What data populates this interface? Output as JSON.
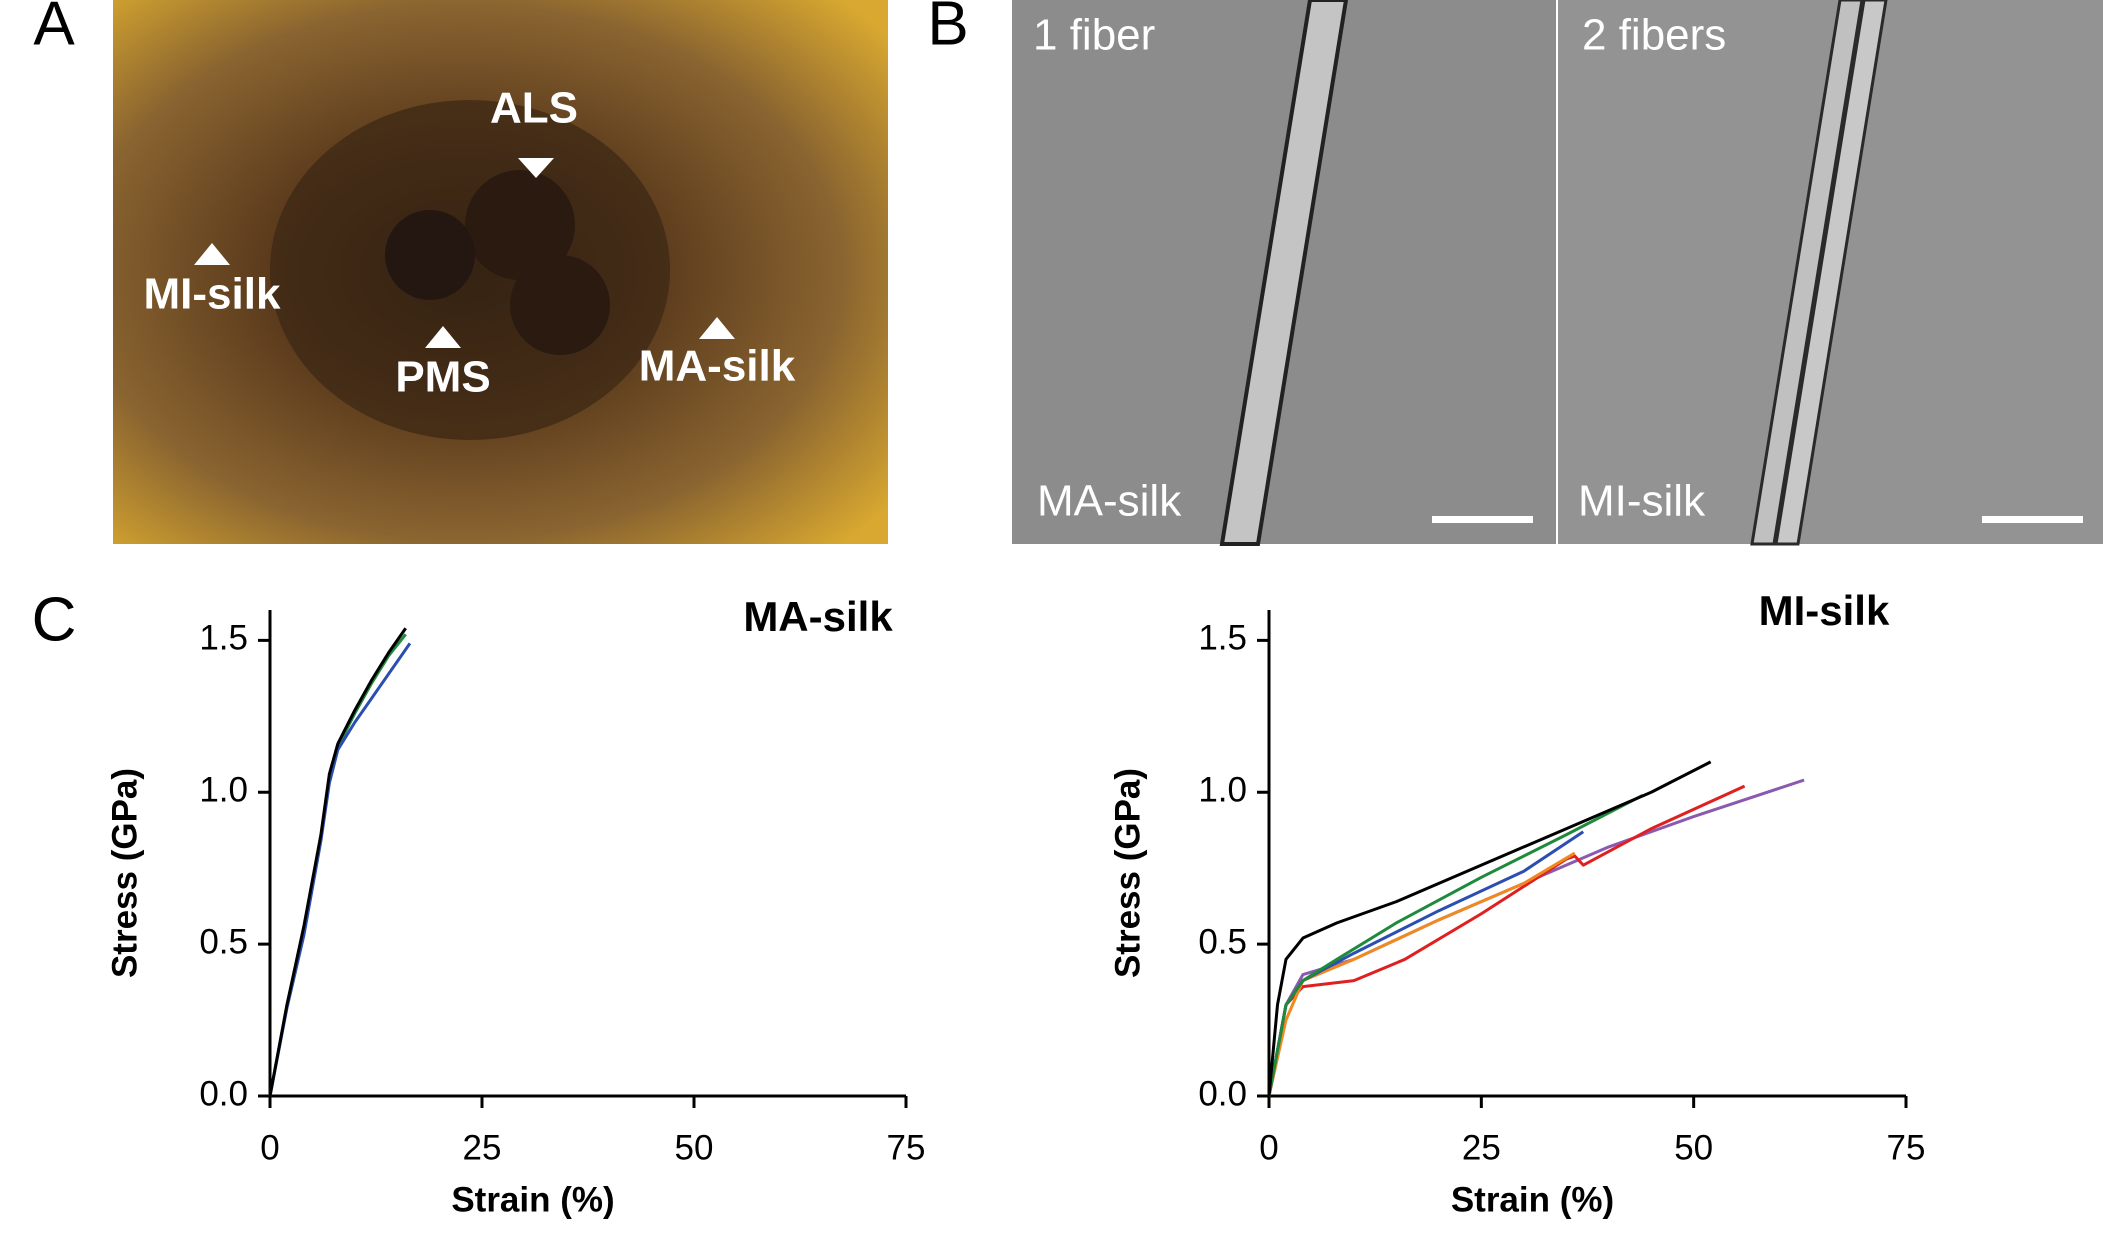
{
  "panels": {
    "a": {
      "label": "A",
      "annotations": [
        "ALS",
        "MI-silk",
        "PMS",
        "MA-silk"
      ]
    },
    "b": {
      "label": "B",
      "annotations": [
        "1 fiber",
        "2 fibers",
        "MA-silk",
        "MI-silk"
      ]
    },
    "c": {
      "label": "C"
    }
  },
  "chart_data": [
    {
      "type": "line",
      "title": "MA-silk",
      "x_label": "Strain (%)",
      "y_label": "Stress (GPa)",
      "xlim": [
        0,
        75
      ],
      "xticks": [
        0,
        25,
        50,
        75
      ],
      "ylim": [
        0,
        1.6
      ],
      "yticks": [
        {
          "value": 0,
          "label": "0.0"
        },
        0.5,
        {
          "value": 1,
          "label": "1.0"
        },
        1.5
      ],
      "series": [
        {
          "color": "#1f8a3c",
          "x": [
            0,
            2,
            4,
            6,
            7,
            8,
            10,
            12,
            14,
            16
          ],
          "values": [
            0,
            0.3,
            0.55,
            0.85,
            1.05,
            1.15,
            1.26,
            1.36,
            1.45,
            1.52
          ]
        },
        {
          "color": "#2a4fb0",
          "x": [
            0,
            2,
            4,
            6,
            7,
            8,
            10,
            12,
            14,
            16.5
          ],
          "values": [
            0,
            0.29,
            0.53,
            0.84,
            1.03,
            1.14,
            1.23,
            1.31,
            1.39,
            1.49
          ]
        },
        {
          "color": "#000000",
          "x": [
            0,
            2,
            4,
            6,
            7,
            8,
            10,
            12,
            14,
            16
          ],
          "values": [
            0,
            0.3,
            0.56,
            0.86,
            1.06,
            1.16,
            1.27,
            1.37,
            1.46,
            1.54
          ]
        }
      ]
    },
    {
      "type": "line",
      "title": "MI-silk",
      "x_label": "Strain (%)",
      "y_label": "Stress (GPa)",
      "xlim": [
        0,
        75
      ],
      "xticks": [
        0,
        25,
        50,
        75
      ],
      "ylim": [
        0,
        1.6
      ],
      "yticks": [
        {
          "value": 0,
          "label": "0.0"
        },
        0.5,
        {
          "value": 1,
          "label": "1.0"
        },
        1.5
      ],
      "series": [
        {
          "color": "#8a5ab0",
          "x": [
            0,
            2,
            4,
            10,
            20,
            30,
            40,
            50,
            63
          ],
          "values": [
            0,
            0.3,
            0.4,
            0.45,
            0.58,
            0.7,
            0.82,
            0.92,
            1.04
          ]
        },
        {
          "color": "#e02020",
          "x": [
            0,
            2,
            4,
            10,
            16,
            25,
            35,
            36,
            37,
            45,
            56
          ],
          "values": [
            0,
            0.3,
            0.36,
            0.38,
            0.45,
            0.6,
            0.78,
            0.79,
            0.76,
            0.88,
            1.02
          ]
        },
        {
          "color": "#f08a20",
          "x": [
            0,
            2,
            4,
            10,
            20,
            30,
            36
          ],
          "values": [
            0,
            0.25,
            0.38,
            0.45,
            0.58,
            0.7,
            0.8
          ]
        },
        {
          "color": "#2a4fb0",
          "x": [
            0,
            2,
            4,
            10,
            20,
            30,
            37
          ],
          "values": [
            0,
            0.3,
            0.38,
            0.47,
            0.61,
            0.74,
            0.87
          ]
        },
        {
          "color": "#1f8a3c",
          "x": [
            0,
            2,
            4,
            8,
            15,
            25,
            35,
            44
          ],
          "values": [
            0,
            0.3,
            0.38,
            0.45,
            0.57,
            0.72,
            0.86,
            0.99
          ]
        },
        {
          "color": "#000000",
          "x": [
            0,
            1,
            2,
            4,
            8,
            15,
            25,
            35,
            45,
            52
          ],
          "values": [
            0,
            0.3,
            0.45,
            0.52,
            0.57,
            0.64,
            0.76,
            0.88,
            1.0,
            1.1
          ]
        }
      ]
    }
  ]
}
